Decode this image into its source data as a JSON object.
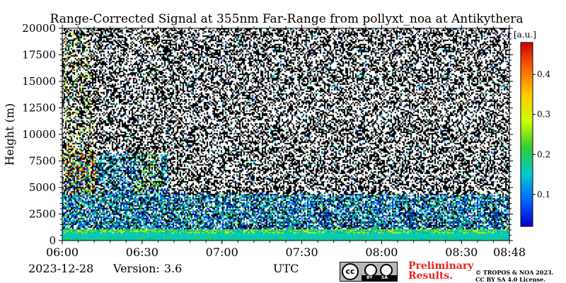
{
  "chart_data": {
    "type": "heatmap",
    "title": "Range-Corrected Signal at 355nm Far-Range from pollyxt_noa at Antikythera",
    "xlabel": "UTC",
    "ylabel": "Height (m)",
    "x_ticks": [
      "06:00",
      "06:30",
      "07:00",
      "07:30",
      "08:00",
      "08:30",
      "08:48"
    ],
    "x_range": [
      "06:00",
      "08:48"
    ],
    "y_ticks": [
      0,
      2500,
      5000,
      7500,
      10000,
      12500,
      15000,
      17500,
      20000
    ],
    "ylim": [
      0,
      20000
    ],
    "colorbar": {
      "label": "[a.u.]",
      "ticks": [
        0.1,
        0.2,
        0.3,
        0.4
      ],
      "range": [
        0.02,
        0.48
      ],
      "colors": [
        "#0000cc",
        "#0066ff",
        "#00cccc",
        "#33cc33",
        "#ccff00",
        "#ffcc00",
        "#ff6600",
        "#cc0000"
      ]
    },
    "grid": true
  },
  "footer": {
    "date": "2023-12-28",
    "version_label": "Version:",
    "version_value": "3.6",
    "preliminary_line1": "Preliminary",
    "preliminary_line2": "Results.",
    "copyright_line1": "© TROPOS & NOA 2023.",
    "copyright_line2": "CC BY SA 4.0 License.",
    "cc_text": "cc",
    "cc_by": "BY",
    "cc_sa": "SA"
  }
}
